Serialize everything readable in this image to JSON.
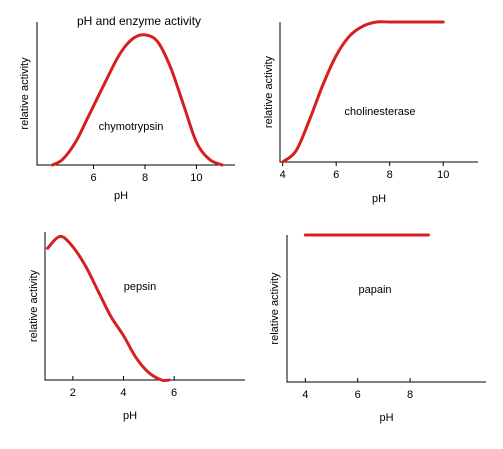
{
  "figure_title": "pH and enzyme activity",
  "chart_data": [
    {
      "id": "chymotrypsin",
      "type": "line",
      "annotation": "chymotrypsin",
      "xlabel": "pH",
      "ylabel": "relative activity",
      "xlim": [
        3.8,
        11.5
      ],
      "ylim": [
        0,
        1.0
      ],
      "xticks": [
        6,
        8,
        10
      ],
      "series": [
        {
          "x": [
            4.4,
            4.8,
            5.3,
            5.8,
            6.4,
            7.0,
            7.5,
            8.0,
            8.5,
            9.0,
            9.5,
            10.0,
            10.5,
            11.0
          ],
          "y": [
            0.0,
            0.04,
            0.16,
            0.34,
            0.56,
            0.77,
            0.88,
            0.91,
            0.86,
            0.68,
            0.42,
            0.16,
            0.04,
            0.0
          ]
        }
      ],
      "color": "#d62020"
    },
    {
      "id": "cholinesterase",
      "type": "line",
      "annotation": "cholinesterase",
      "xlabel": "pH",
      "ylabel": "relative activity",
      "xlim": [
        3.9,
        11.3
      ],
      "ylim": [
        0,
        1.0
      ],
      "xticks": [
        4,
        6,
        8,
        10
      ],
      "series": [
        {
          "x": [
            4.0,
            4.5,
            5.0,
            5.5,
            6.0,
            6.5,
            7.0,
            7.5,
            8.0,
            9.0,
            10.0
          ],
          "y": [
            0.0,
            0.08,
            0.3,
            0.55,
            0.76,
            0.9,
            0.97,
            1.0,
            1.0,
            1.0,
            1.0
          ]
        }
      ],
      "color": "#d62020"
    },
    {
      "id": "pepsin",
      "type": "line",
      "annotation": "pepsin",
      "xlabel": "pH",
      "ylabel": "relative activity",
      "xlim": [
        0.9,
        8.8
      ],
      "ylim": [
        0,
        1.0
      ],
      "xticks": [
        2,
        4,
        6
      ],
      "series": [
        {
          "x": [
            1.0,
            1.5,
            2.0,
            2.5,
            3.0,
            3.5,
            4.0,
            4.5,
            5.0,
            5.5,
            5.8
          ],
          "y": [
            0.89,
            0.97,
            0.9,
            0.77,
            0.6,
            0.43,
            0.3,
            0.15,
            0.05,
            0.0,
            0.0
          ]
        }
      ],
      "color": "#d62020"
    },
    {
      "id": "papain",
      "type": "line",
      "annotation": "papain",
      "xlabel": "pH",
      "ylabel": "relative activity",
      "xlim": [
        3.3,
        10.9
      ],
      "ylim": [
        0,
        1.0
      ],
      "xticks": [
        4,
        6,
        8
      ],
      "series": [
        {
          "x": [
            4.0,
            8.7
          ],
          "y": [
            1.0,
            1.0
          ]
        }
      ],
      "color": "#d62020"
    }
  ]
}
